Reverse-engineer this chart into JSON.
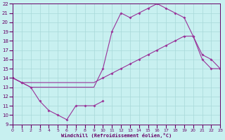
{
  "background_color": "#c8f0f0",
  "grid_color": "#a8d8d8",
  "line_color": "#993399",
  "marker_color": "#993399",
  "xlim": [
    0,
    23
  ],
  "ylim": [
    9,
    22
  ],
  "xlabel": "Windchill (Refroidissement éolien,°C)",
  "xticks": [
    0,
    1,
    2,
    3,
    4,
    5,
    6,
    7,
    8,
    9,
    10,
    11,
    12,
    13,
    14,
    15,
    16,
    17,
    18,
    19,
    20,
    21,
    22,
    23
  ],
  "yticks": [
    9,
    10,
    11,
    12,
    13,
    14,
    15,
    16,
    17,
    18,
    19,
    20,
    21,
    22
  ],
  "series": [
    {
      "x": [
        0,
        1,
        2,
        3,
        4,
        5,
        6,
        7,
        8,
        9,
        10
      ],
      "y": [
        14,
        13.5,
        13,
        11.5,
        10.5,
        10.0,
        9.5,
        11.0,
        11.0,
        11.0,
        11.5
      ]
    },
    {
      "x": [
        0,
        1,
        2,
        3,
        4,
        5,
        6,
        7,
        8,
        9,
        10,
        11,
        12,
        13,
        14,
        15,
        16,
        17,
        18,
        19,
        20,
        21,
        22,
        23
      ],
      "y": [
        14,
        13.5,
        13.5,
        13.5,
        13.5,
        13.5,
        13.5,
        13.5,
        13.5,
        13.5,
        14.0,
        14.5,
        15.0,
        15.5,
        16.0,
        16.5,
        17.0,
        17.5,
        18.0,
        18.5,
        18.5,
        16.5,
        16.0,
        15.0
      ]
    },
    {
      "x": [
        0,
        1,
        2,
        3,
        4,
        5,
        6,
        7,
        8,
        9,
        10,
        11,
        12,
        13,
        14,
        15,
        16,
        17,
        18,
        19,
        20,
        21,
        22,
        23
      ],
      "y": [
        14,
        13.5,
        13.0,
        13.0,
        13.0,
        13.0,
        13.0,
        13.0,
        13.0,
        13.0,
        15.0,
        19.0,
        21.0,
        20.5,
        21.0,
        21.5,
        22.0,
        21.5,
        21.0,
        20.5,
        18.5,
        16.0,
        15.0,
        15.0
      ]
    }
  ],
  "marker_series": [
    {
      "x": [
        0,
        1,
        2,
        3,
        4,
        5,
        6,
        7,
        8,
        9,
        10
      ],
      "y": [
        14,
        13.5,
        13,
        11.5,
        10.5,
        10.0,
        9.5,
        11.0,
        11.0,
        11.0,
        11.5
      ]
    },
    {
      "x": [
        0,
        10,
        11,
        12,
        13,
        14,
        15,
        16,
        17,
        18,
        19,
        20,
        21,
        22,
        23
      ],
      "y": [
        14,
        14.0,
        14.5,
        15.0,
        15.5,
        16.0,
        16.5,
        17.0,
        17.5,
        18.0,
        18.5,
        18.5,
        16.5,
        16.0,
        15.0
      ]
    },
    {
      "x": [
        0,
        1,
        10,
        11,
        12,
        13,
        14,
        15,
        16,
        17,
        18,
        19,
        20,
        21,
        22,
        23
      ],
      "y": [
        14,
        13.5,
        15.0,
        19.0,
        21.0,
        20.5,
        21.0,
        21.5,
        22.0,
        21.5,
        21.0,
        20.5,
        18.5,
        16.0,
        15.0,
        15.0
      ]
    }
  ]
}
